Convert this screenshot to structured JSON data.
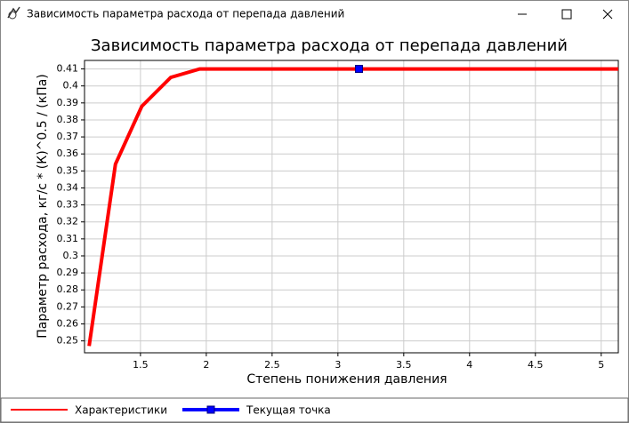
{
  "window_title": "Зависимость параметра расхода от перепада давлений",
  "chart_data": {
    "type": "line",
    "title": "Зависимость параметра расхода от перепада давлений",
    "x_label": "Степень понижения давления",
    "y_label": "Параметр расхода, кг/с * (К)^0.5 / (кПа)",
    "xlim": [
      1.075,
      5.13
    ],
    "xticks": [
      1.5,
      2,
      2.5,
      3,
      3.5,
      4,
      4.5,
      5
    ],
    "ylim": [
      0.243,
      0.415
    ],
    "yticks": [
      0.25,
      0.26,
      0.27,
      0.28,
      0.29,
      0.3,
      0.31,
      0.32,
      0.33,
      0.34,
      0.35,
      0.36,
      0.37,
      0.38,
      0.39,
      0.4,
      0.41
    ],
    "grid": true,
    "series": [
      {
        "name": "Характеристики",
        "color": "#ff0000",
        "marker": "none",
        "x": [
          1.11,
          1.31,
          1.51,
          1.73,
          1.95,
          5.13
        ],
        "values": [
          0.247,
          0.354,
          0.388,
          0.405,
          0.41,
          0.41
        ]
      },
      {
        "name": "Текущая точка",
        "color": "#0000ff",
        "marker": "square",
        "x": [
          3.16
        ],
        "values": [
          0.41
        ]
      }
    ]
  }
}
